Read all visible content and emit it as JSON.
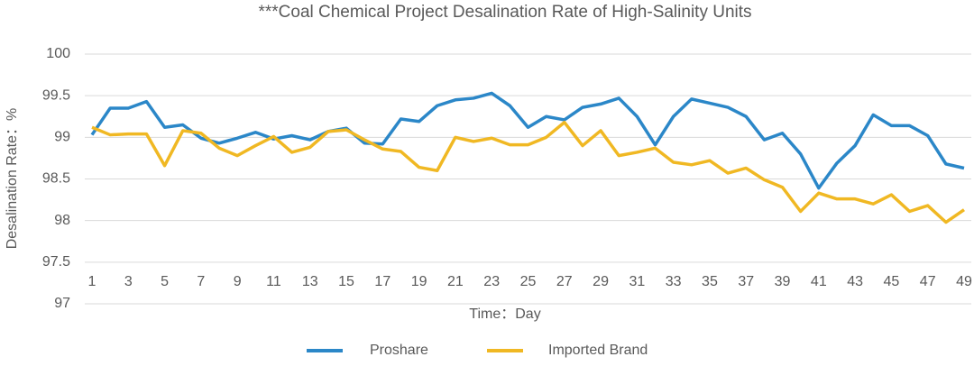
{
  "chart_data": {
    "type": "line",
    "title": "***Coal Chemical Project Desalination Rate of High-Salinity Units",
    "x_label": "Time：Day",
    "y_label": "Desalination Rate：%",
    "x": [
      1,
      2,
      3,
      4,
      5,
      6,
      7,
      8,
      9,
      10,
      11,
      12,
      13,
      14,
      15,
      16,
      17,
      18,
      19,
      20,
      21,
      22,
      23,
      24,
      25,
      26,
      27,
      28,
      29,
      30,
      31,
      32,
      33,
      34,
      35,
      36,
      37,
      38,
      39,
      40,
      41,
      42,
      43,
      44,
      45,
      46,
      47,
      48,
      49
    ],
    "xlim": [
      1,
      49
    ],
    "xticks": [
      1,
      3,
      5,
      7,
      9,
      11,
      13,
      15,
      17,
      19,
      21,
      23,
      25,
      27,
      29,
      31,
      33,
      35,
      37,
      39,
      41,
      43,
      45,
      47,
      49
    ],
    "ylim": [
      97,
      100
    ],
    "yticks": [
      97,
      97.5,
      98,
      98.5,
      99,
      99.5,
      100
    ],
    "grid": true,
    "legend": "bottom",
    "series": [
      {
        "name": "Proshare",
        "color": "#2b87c8",
        "values": [
          99.03,
          99.35,
          99.35,
          99.43,
          99.12,
          99.15,
          98.99,
          98.93,
          98.99,
          99.06,
          98.98,
          99.02,
          98.97,
          99.07,
          99.11,
          98.93,
          98.92,
          99.22,
          99.19,
          99.38,
          99.45,
          99.47,
          99.53,
          99.38,
          99.12,
          99.25,
          99.21,
          99.36,
          99.4,
          99.47,
          99.25,
          98.91,
          99.25,
          99.46,
          99.41,
          99.36,
          99.25,
          98.97,
          99.05,
          98.8,
          98.39,
          98.69,
          98.9,
          99.27,
          99.14,
          99.14,
          99.02,
          98.68,
          98.63
        ]
      },
      {
        "name": "Imported Brand",
        "color": "#f0b823",
        "values": [
          99.12,
          99.03,
          99.04,
          99.04,
          98.66,
          99.08,
          99.05,
          98.87,
          98.78,
          98.9,
          99.01,
          98.82,
          98.88,
          99.07,
          99.09,
          98.97,
          98.86,
          98.83,
          98.64,
          98.6,
          99.0,
          98.95,
          98.99,
          98.91,
          98.91,
          99.0,
          99.18,
          98.9,
          99.08,
          98.78,
          98.82,
          98.87,
          98.7,
          98.67,
          98.72,
          98.57,
          98.63,
          98.49,
          98.4,
          98.11,
          98.33,
          98.26,
          98.26,
          98.2,
          98.31,
          98.11,
          98.18,
          97.98,
          98.13
        ]
      }
    ]
  }
}
